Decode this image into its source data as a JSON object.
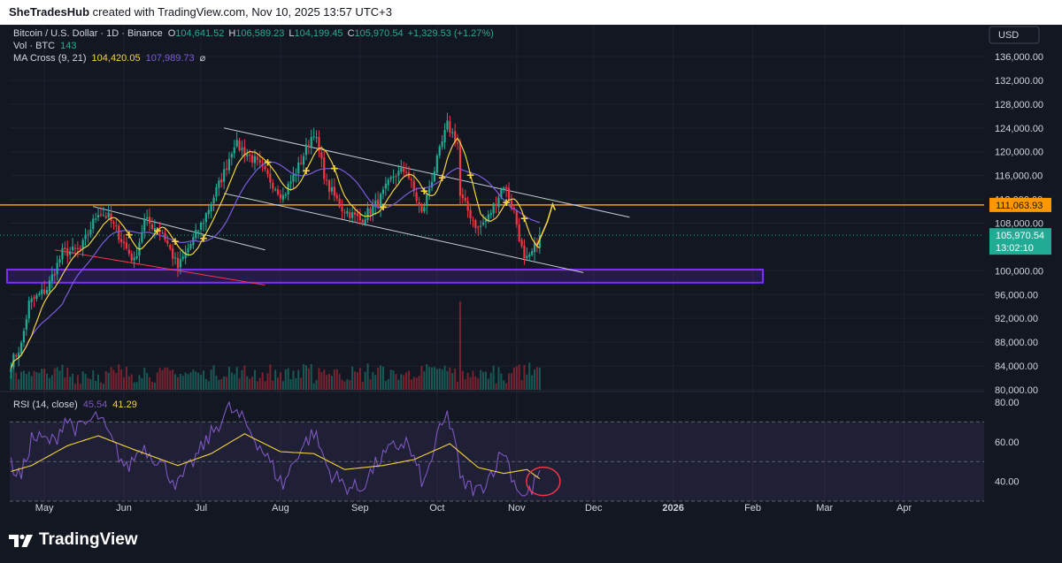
{
  "header": {
    "user": "SheTradesHub",
    "text": "created with TradingView.com, Nov 10, 2025 13:57 UTC+3"
  },
  "legend": {
    "symbol": "Bitcoin / U.S. Dollar · 1D · Binance",
    "o_label": "O",
    "o_value": "104,641.52",
    "h_label": "H",
    "h_value": "106,589.23",
    "l_label": "L",
    "l_value": "104,199.45",
    "c_label": "C",
    "c_value": "105,970.54",
    "change": "+1,329.53 (+1.27%)",
    "vol_label": "Vol · BTC",
    "vol_value": "143",
    "ma_label": "MA Cross (9, 21)",
    "ma_fast_value": "104,420.05",
    "ma_slow_value": "107,989.73",
    "ma_flag": "⌀",
    "rsi_label": "RSI (14, close)",
    "rsi_value": "45.54",
    "rsi_ma_value": "41.29"
  },
  "currency": "USD",
  "colors": {
    "background": "#131722",
    "up": "#22ab94",
    "down": "#f23645",
    "ma_fast": "#f5d33b",
    "ma_slow": "#7b5bdc",
    "rsi": "#7e57c2",
    "resistance": "#ff9800",
    "zone": "#7b2cff",
    "annotation": "#f5d33b",
    "circle": "#f23645"
  },
  "footer": {
    "brand": "TradingView",
    "logo_icon": "tradingview-logo-icon"
  },
  "chart_data": [
    {
      "type": "candlestick",
      "title": "Bitcoin / U.S. Dollar · 1D · Binance",
      "x_start": "2025-04-18",
      "x_end": "2025-11-10",
      "x_ticks": [
        {
          "date": "2025-05-01",
          "label": "May"
        },
        {
          "date": "2025-06-01",
          "label": "Jun"
        },
        {
          "date": "2025-07-01",
          "label": "Jul"
        },
        {
          "date": "2025-08-01",
          "label": "Aug"
        },
        {
          "date": "2025-09-01",
          "label": "Sep"
        },
        {
          "date": "2025-10-01",
          "label": "Oct"
        },
        {
          "date": "2025-11-01",
          "label": "Nov"
        },
        {
          "date": "2025-12-01",
          "label": "Dec"
        },
        {
          "date": "2026-01-01",
          "label": "2026"
        },
        {
          "date": "2026-02-01",
          "label": "Feb"
        },
        {
          "date": "2026-03-01",
          "label": "Mar"
        },
        {
          "date": "2026-04-01",
          "label": "Apr"
        }
      ],
      "y_ticks": [
        "136,000.00",
        "132,000.00",
        "128,000.00",
        "124,000.00",
        "120,000.00",
        "116,000.00",
        "112,000.00",
        "108,000.00",
        "100,000.00",
        "96,000.00",
        "92,000.00",
        "88,000.00",
        "84,000.00",
        "80,000.00"
      ],
      "ylim": [
        80000,
        136000
      ],
      "price_anchors": [
        [
          "2025-04-18",
          84500
        ],
        [
          "2025-04-22",
          87500
        ],
        [
          "2025-04-25",
          94500
        ],
        [
          "2025-05-02",
          97000
        ],
        [
          "2025-05-08",
          103000
        ],
        [
          "2025-05-15",
          103500
        ],
        [
          "2025-05-22",
          110000
        ],
        [
          "2025-05-26",
          109000
        ],
        [
          "2025-06-05",
          101500
        ],
        [
          "2025-06-09",
          108500
        ],
        [
          "2025-06-16",
          106500
        ],
        [
          "2025-06-22",
          100500
        ],
        [
          "2025-07-02",
          108500
        ],
        [
          "2025-07-10",
          116500
        ],
        [
          "2025-07-14",
          121500
        ],
        [
          "2025-07-22",
          118500
        ],
        [
          "2025-08-02",
          112500
        ],
        [
          "2025-08-08",
          117500
        ],
        [
          "2025-08-14",
          123500
        ],
        [
          "2025-08-19",
          114500
        ],
        [
          "2025-08-25",
          110500
        ],
        [
          "2025-09-01",
          108500
        ],
        [
          "2025-09-08",
          111500
        ],
        [
          "2025-09-14",
          116000
        ],
        [
          "2025-09-19",
          117000
        ],
        [
          "2025-09-25",
          109500
        ],
        [
          "2025-10-01",
          118500
        ],
        [
          "2025-10-05",
          124500
        ],
        [
          "2025-10-09",
          121500
        ],
        [
          "2025-10-10",
          112500
        ],
        [
          "2025-10-17",
          107000
        ],
        [
          "2025-10-21",
          109000
        ],
        [
          "2025-10-27",
          114500
        ],
        [
          "2025-10-31",
          110000
        ],
        [
          "2025-11-04",
          101500
        ],
        [
          "2025-11-06",
          102000
        ],
        [
          "2025-11-10",
          105970
        ]
      ],
      "last_price": "105,970.54",
      "last_price_countdown": "13:02:10",
      "resistance_price": "111,063.93",
      "support_zone": [
        98000,
        100200
      ],
      "volume_spike_date": "2025-10-10"
    },
    {
      "type": "line",
      "title": "RSI (14, close)",
      "y_ticks": [
        "80.00",
        "60.00",
        "40.00"
      ],
      "ylim": [
        26,
        84
      ],
      "bands": [
        70,
        50,
        30
      ],
      "rsi_anchors": [
        [
          "2025-04-18",
          48
        ],
        [
          "2025-04-22",
          42
        ],
        [
          "2025-04-26",
          62
        ],
        [
          "2025-05-05",
          60
        ],
        [
          "2025-05-09",
          72
        ],
        [
          "2025-05-14",
          66
        ],
        [
          "2025-05-22",
          73
        ],
        [
          "2025-06-02",
          46
        ],
        [
          "2025-06-08",
          58
        ],
        [
          "2025-06-15",
          50
        ],
        [
          "2025-06-22",
          38
        ],
        [
          "2025-07-03",
          60
        ],
        [
          "2025-07-12",
          77
        ],
        [
          "2025-07-18",
          70
        ],
        [
          "2025-07-25",
          56
        ],
        [
          "2025-08-02",
          38
        ],
        [
          "2025-08-08",
          55
        ],
        [
          "2025-08-14",
          65
        ],
        [
          "2025-08-20",
          45
        ],
        [
          "2025-08-26",
          38
        ],
        [
          "2025-09-01",
          36
        ],
        [
          "2025-09-08",
          50
        ],
        [
          "2025-09-14",
          57
        ],
        [
          "2025-09-19",
          60
        ],
        [
          "2025-09-26",
          38
        ],
        [
          "2025-10-01",
          62
        ],
        [
          "2025-10-05",
          73
        ],
        [
          "2025-10-08",
          62
        ],
        [
          "2025-10-10",
          40
        ],
        [
          "2025-10-17",
          35
        ],
        [
          "2025-10-21",
          42
        ],
        [
          "2025-10-27",
          56
        ],
        [
          "2025-10-31",
          40
        ],
        [
          "2025-11-04",
          32
        ],
        [
          "2025-11-07",
          36
        ],
        [
          "2025-11-10",
          45.54
        ]
      ],
      "rsi_ma_anchors": [
        [
          "2025-04-18",
          45
        ],
        [
          "2025-04-26",
          48
        ],
        [
          "2025-05-10",
          58
        ],
        [
          "2025-05-22",
          63
        ],
        [
          "2025-06-05",
          56
        ],
        [
          "2025-06-22",
          48
        ],
        [
          "2025-07-05",
          54
        ],
        [
          "2025-07-18",
          64
        ],
        [
          "2025-08-01",
          55
        ],
        [
          "2025-08-14",
          54
        ],
        [
          "2025-08-26",
          46
        ],
        [
          "2025-09-10",
          48
        ],
        [
          "2025-09-22",
          51
        ],
        [
          "2025-10-06",
          59
        ],
        [
          "2025-10-17",
          47
        ],
        [
          "2025-10-27",
          44
        ],
        [
          "2025-11-05",
          46
        ],
        [
          "2025-11-10",
          41.29
        ]
      ]
    }
  ]
}
